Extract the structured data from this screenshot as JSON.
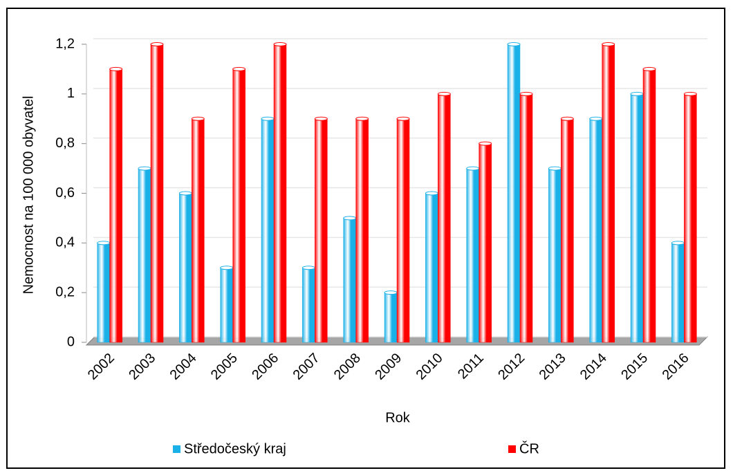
{
  "chart_data": {
    "type": "bar",
    "categories": [
      "2002",
      "2003",
      "2004",
      "2005",
      "2006",
      "2007",
      "2008",
      "2009",
      "2010",
      "2011",
      "2012",
      "2013",
      "2014",
      "2015",
      "2016"
    ],
    "series": [
      {
        "name": "Středočeský kraj",
        "color": "#1ab0e8",
        "values": [
          0.4,
          0.7,
          0.6,
          0.3,
          0.9,
          0.3,
          0.5,
          0.2,
          0.6,
          0.7,
          1.2,
          0.7,
          0.9,
          1.0,
          0.4
        ]
      },
      {
        "name": "ČR",
        "color": "#ff0000",
        "values": [
          1.1,
          1.2,
          0.9,
          1.1,
          1.2,
          0.9,
          0.9,
          0.9,
          1.0,
          0.8,
          1.0,
          0.9,
          1.2,
          1.1,
          1.0
        ]
      }
    ],
    "ylim": [
      0,
      1.2
    ],
    "yticks": [
      0,
      {
        "value": 0.2,
        "label": "0,2"
      },
      {
        "value": 0.4,
        "label": "0,4"
      },
      {
        "value": 0.6,
        "label": "0,6"
      },
      {
        "value": 0.8,
        "label": "0,8"
      },
      1,
      {
        "value": 1.2,
        "label": "1,2"
      }
    ],
    "xlabel": "Rok",
    "ylabel": "Nemocnost na 100 000 obyvatel",
    "grid": true
  }
}
